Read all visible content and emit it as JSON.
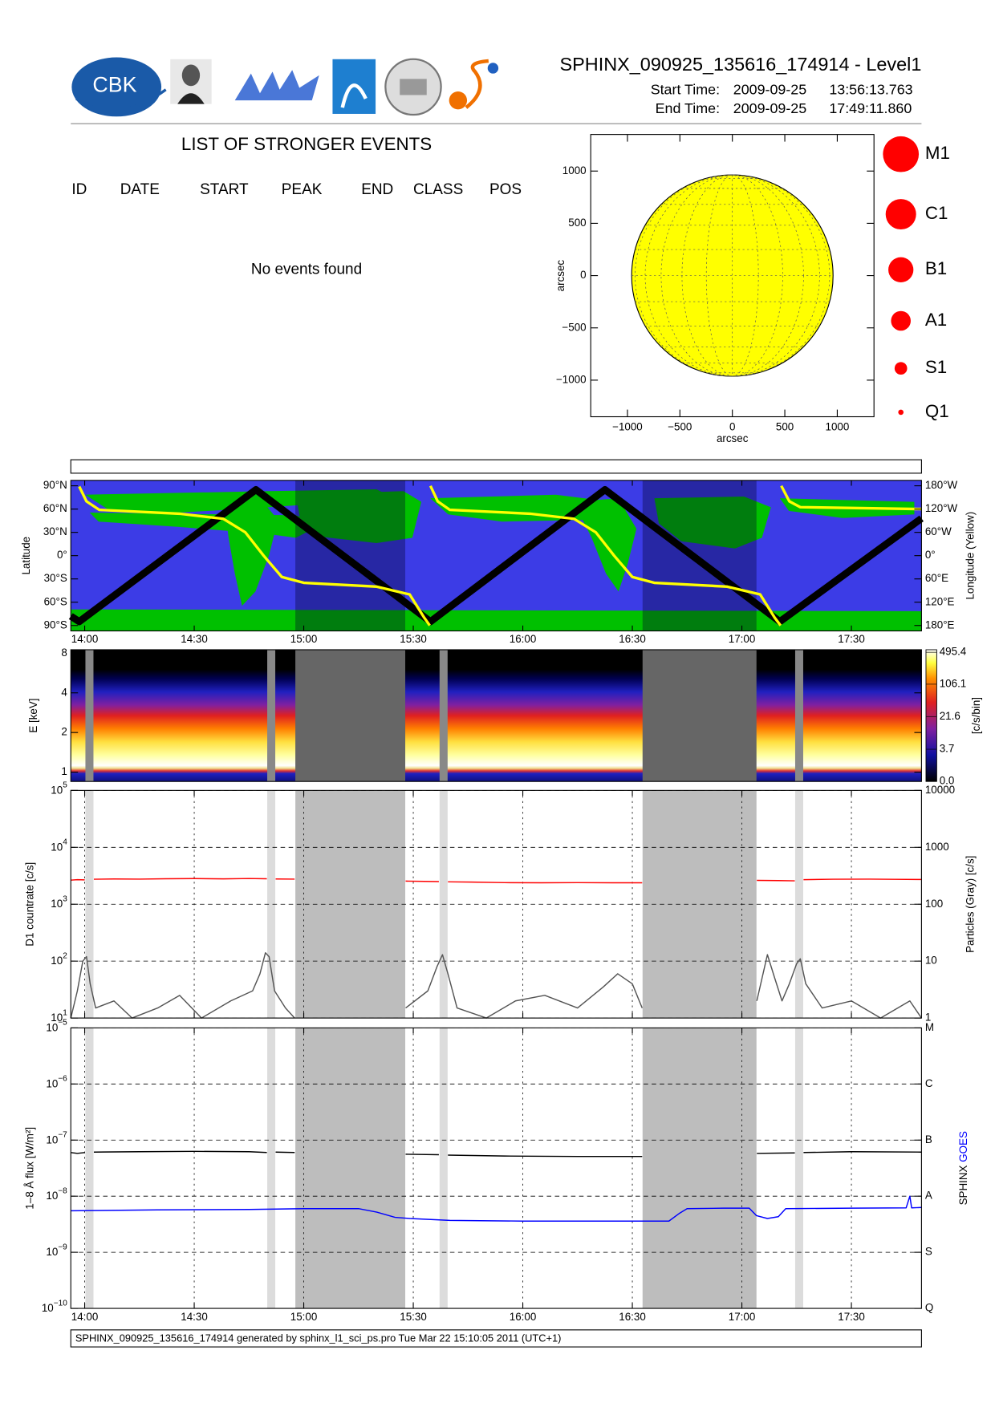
{
  "header": {
    "title": "SPHINX_090925_135616_174914 - Level1",
    "start_label": "Start Time:",
    "start_date": "2009-09-25",
    "start_time": "13:56:13.763",
    "end_label": "End Time:",
    "end_date": "2009-09-25",
    "end_time": "17:49:11.860",
    "logo": "CBK"
  },
  "events": {
    "title": "LIST OF STRONGER EVENTS",
    "columns": [
      "ID",
      "DATE",
      "START",
      "PEAK",
      "END",
      "CLASS",
      "POS"
    ],
    "message": "No events found"
  },
  "intervals": {
    "narrow": [
      [
        840.2,
        842.4
      ],
      [
        890.0,
        892.2
      ],
      [
        937.2,
        939.4
      ],
      [
        1034.6,
        1036.8
      ]
    ],
    "wide": [
      [
        897.7,
        927.8
      ],
      [
        992.8,
        1024.0
      ]
    ]
  },
  "footer": "SPHINX_090925_135616_174914 generated by sphinx_l1_sci_ps.pro Tue Mar 22 15:10:05 2011 (UTC+1)",
  "chart_data": [
    {
      "type": "disk",
      "xlabel": "arcsec",
      "ylabel": "arcsec",
      "xlim": [
        -1350,
        1350
      ],
      "ylim": [
        -1350,
        1350
      ],
      "xticks": [
        {
          "value": -1000,
          "label": "−1000"
        },
        {
          "value": -500,
          "label": "−500"
        },
        0,
        500,
        1000
      ],
      "yticks": [
        {
          "value": -1000,
          "label": "−1000"
        },
        {
          "value": -500,
          "label": "−500"
        },
        0,
        500,
        1000
      ],
      "disk_radius": 960,
      "disk_color": "#ffff00",
      "legend": {
        "labels": [
          "M1",
          "C1",
          "B1",
          "A1",
          "S1",
          "Q1"
        ],
        "color": "#ff0000"
      }
    },
    {
      "type": "track",
      "ylabel": "Latitude",
      "y2label": "Longitude (Yellow)",
      "background": "#3c3ce6",
      "land_color": "#00c000",
      "xlim": [
        836.2,
        1069.2
      ],
      "xticks": [
        {
          "value": 840,
          "label": "14:00"
        },
        {
          "value": 870,
          "label": "14:30"
        },
        {
          "value": 900,
          "label": "15:00"
        },
        {
          "value": 930,
          "label": "15:30"
        },
        {
          "value": 960,
          "label": "16:00"
        },
        {
          "value": 990,
          "label": "16:30"
        },
        {
          "value": 1020,
          "label": "17:00"
        },
        {
          "value": 1050,
          "label": "17:30"
        }
      ],
      "ylim": [
        -97,
        97
      ],
      "yticks": [
        {
          "value": 90,
          "label": "90°N"
        },
        {
          "value": 60,
          "label": "60°N"
        },
        {
          "value": 30,
          "label": "30°N"
        },
        {
          "value": 0,
          "label": "0°"
        },
        {
          "value": -30,
          "label": "30°S"
        },
        {
          "value": -60,
          "label": "60°S"
        },
        {
          "value": -90,
          "label": "90°S"
        }
      ],
      "y2lim": [
        -194,
        194
      ],
      "y2ticks": [
        {
          "value": 180,
          "label": "180°W"
        },
        {
          "value": 120,
          "label": "120°W"
        },
        {
          "value": 60,
          "label": "60°W"
        },
        {
          "value": 0,
          "label": "0°"
        },
        {
          "value": -60,
          "label": "60°E"
        },
        {
          "value": -120,
          "label": "120°E"
        },
        {
          "value": -180,
          "label": "180°E"
        }
      ],
      "series": [
        {
          "color": "#000000",
          "x": [
            836.2,
            838.5,
            886.9,
            934.7,
            982.5,
            1030.4,
            1069.2
          ],
          "values": [
            -78,
            -85,
            85,
            -85,
            85,
            -85,
            48
          ]
        },
        {
          "color": "#ffff00",
          "axis": "y2",
          "x": [
            838.5,
            840.5,
            844,
            866,
            878,
            884,
            889,
            894,
            900,
            920,
            929,
            933,
            934.5,
            934.6,
            934.7,
            936.7,
            940,
            962,
            974,
            980,
            985,
            990,
            996,
            1016,
            1025,
            1029,
            1030.6,
            1030.7,
            1030.8,
            1033,
            1036,
            1069.2
          ],
          "values": [
            178,
            140,
            118,
            108,
            95,
            60,
            0,
            -55,
            -70,
            -80,
            -100,
            -160,
            -180,
            null,
            180,
            140,
            118,
            108,
            95,
            60,
            0,
            -55,
            -70,
            -80,
            -100,
            -160,
            -180,
            null,
            180,
            140,
            125,
            120
          ]
        }
      ]
    },
    {
      "type": "spectrogram",
      "ylabel": "E [keV]",
      "log_y": true,
      "ylim": [
        0.85,
        8.5
      ],
      "yticks": [
        1,
        2,
        4,
        8
      ],
      "xlim": [
        836.2,
        1069.2
      ],
      "interval_colors": {
        "narrow": "#888888",
        "wide": "#666666"
      },
      "colorbar": {
        "label": "[c/s/bin]",
        "clim": [
          0,
          560
        ],
        "ticks": [
          495.4,
          106.1,
          21.6,
          3.7,
          {
            "value": 0,
            "label": "0.0"
          }
        ]
      }
    },
    {
      "type": "line",
      "ylabel": "D1 countrate [c/s]",
      "y2label": "Particles (Gray) [c/s]",
      "log_y": true,
      "grid": true,
      "interval_colors": {
        "narrow": "#dcdcdc",
        "wide": "#bdbdbd"
      },
      "xlim": [
        836.2,
        1069.2
      ],
      "xticks": [
        840,
        870,
        900,
        930,
        960,
        990,
        1020,
        1050
      ],
      "ylim": [
        10,
        100000
      ],
      "yticks": [
        {
          "value": 10,
          "label": "10",
          "exponent": "1"
        },
        {
          "value": 100,
          "label": "10",
          "exponent": "2"
        },
        {
          "value": 1000,
          "label": "10",
          "exponent": "3"
        },
        {
          "value": 10000,
          "label": "10",
          "exponent": "4"
        },
        {
          "value": 100000,
          "label": "10",
          "exponent": "5"
        }
      ],
      "y2lim": [
        1,
        10000
      ],
      "y2ticks": [
        1,
        10,
        100,
        1000,
        10000
      ],
      "series": [
        {
          "color": "#ff0000",
          "x": [
            836.2,
            838,
            840,
            841.3,
            842.5,
            848,
            855,
            862,
            870,
            878,
            885,
            889.9,
            891,
            892.3,
            897.5,
            912,
            927.9,
            933,
            937,
            938.3,
            939.5,
            946,
            955,
            965,
            975,
            985,
            992.7,
            1008,
            1024.1,
            1030,
            1034.5,
            1035.7,
            1036.9,
            1045,
            1055,
            1062,
            1069.2
          ],
          "values": [
            2650,
            2700,
            2680,
            null,
            2750,
            2780,
            2760,
            2800,
            2820,
            2790,
            2830,
            2800,
            null,
            2780,
            2760,
            null,
            2550,
            2520,
            2500,
            null,
            2480,
            2450,
            2400,
            2380,
            2400,
            2380,
            2380,
            null,
            2620,
            2600,
            2580,
            null,
            2700,
            2750,
            2760,
            2740,
            2720
          ]
        },
        {
          "color": "#555555",
          "axis": "y2",
          "x": [
            836.2,
            838,
            839.5,
            840.5,
            841.5,
            843,
            848,
            853,
            860,
            866,
            872,
            880,
            886,
            888,
            889.5,
            890.5,
            892,
            895,
            897.5,
            912,
            927.9,
            934,
            936.5,
            938,
            939.5,
            942,
            950,
            958,
            966,
            975,
            982,
            986,
            990,
            992.7,
            1008,
            1024.1,
            1027,
            1029,
            1031,
            1033,
            1035,
            1036,
            1037.5,
            1042,
            1050,
            1058,
            1066,
            1069.2
          ],
          "values": [
            1,
            3,
            10,
            12,
            4,
            1.5,
            2,
            1,
            1.5,
            2.5,
            1,
            2,
            3,
            6,
            14,
            12,
            3,
            1.5,
            1,
            null,
            1.5,
            3,
            8,
            13,
            6,
            1.5,
            1,
            2,
            2.5,
            1.5,
            3.5,
            6,
            4,
            1.5,
            null,
            2,
            13,
            5,
            2,
            4,
            9,
            11,
            4,
            1.5,
            2,
            1,
            2,
            1
          ]
        }
      ]
    },
    {
      "type": "line",
      "ylabel": "1–8 Å flux [W/m²]",
      "log_y": true,
      "grid": true,
      "interval_colors": {
        "narrow": "#dcdcdc",
        "wide": "#bdbdbd"
      },
      "xlim": [
        836.2,
        1069.2
      ],
      "xticks": [
        {
          "value": 840,
          "label": "14:00"
        },
        {
          "value": 870,
          "label": "14:30"
        },
        {
          "value": 900,
          "label": "15:00"
        },
        {
          "value": 930,
          "label": "15:30"
        },
        {
          "value": 960,
          "label": "16:00"
        },
        {
          "value": 990,
          "label": "16:30"
        },
        {
          "value": 1020,
          "label": "17:00"
        },
        {
          "value": 1050,
          "label": "17:30"
        }
      ],
      "ylim": [
        1e-10,
        1e-05
      ],
      "yticks": [
        {
          "value": 1e-10,
          "label": "10",
          "exponent": "−10"
        },
        {
          "value": 1e-09,
          "label": "10",
          "exponent": "−9"
        },
        {
          "value": 1e-08,
          "label": "10",
          "exponent": "−8"
        },
        {
          "value": 1e-07,
          "label": "10",
          "exponent": "−7"
        },
        {
          "value": 1e-06,
          "label": "10",
          "exponent": "−6"
        },
        {
          "value": 1e-05,
          "label": "10",
          "exponent": "−5"
        }
      ],
      "y2lim": [
        1e-10,
        1e-05
      ],
      "y2ticks": [
        {
          "value": 1e-10,
          "label": "Q"
        },
        {
          "value": 1e-09,
          "label": "S"
        },
        {
          "value": 1e-08,
          "label": "A"
        },
        {
          "value": 1e-07,
          "label": "B"
        },
        {
          "value": 1e-06,
          "label": "C"
        },
        {
          "value": 1e-05,
          "label": "M"
        }
      ],
      "series": [
        {
          "name": "SPHINX",
          "color": "#000000",
          "x": [
            836.2,
            838,
            840,
            841.3,
            842.5,
            855,
            870,
            885,
            889.9,
            891,
            892.3,
            897.5,
            912,
            927.9,
            937,
            938.3,
            939.5,
            955,
            975,
            992.7,
            1008,
            1024.1,
            1034.5,
            1035.7,
            1036.9,
            1050,
            1069.2
          ],
          "values": [
            6e-08,
            5.8e-08,
            6e-08,
            null,
            6.1e-08,
            6.2e-08,
            6.3e-08,
            6.2e-08,
            6e-08,
            null,
            6.1e-08,
            6e-08,
            null,
            5.6e-08,
            5.5e-08,
            null,
            5.4e-08,
            5.2e-08,
            5.1e-08,
            5.1e-08,
            null,
            5.8e-08,
            5.9e-08,
            null,
            6e-08,
            6.2e-08,
            6.1e-08
          ]
        },
        {
          "name": "GOES",
          "color": "#0000ff",
          "x": [
            836.2,
            860,
            885,
            900,
            915,
            920,
            925,
            929,
            940,
            960,
            990,
            1000,
            1003,
            1005,
            1015,
            1022,
            1024,
            1027,
            1030,
            1032,
            1050,
            1065,
            1066,
            1066.5,
            1069.2
          ],
          "values": [
            5.5e-09,
            5.7e-09,
            5.8e-09,
            6e-09,
            6e-09,
            5.2e-09,
            4.2e-09,
            4e-09,
            3.7e-09,
            3.6e-09,
            3.6e-09,
            3.6e-09,
            5e-09,
            6e-09,
            6.1e-09,
            6.1e-09,
            4.5e-09,
            4e-09,
            4.3e-09,
            6e-09,
            6.1e-09,
            6.2e-09,
            1e-08,
            6.2e-09,
            6.3e-09
          ]
        }
      ]
    }
  ]
}
